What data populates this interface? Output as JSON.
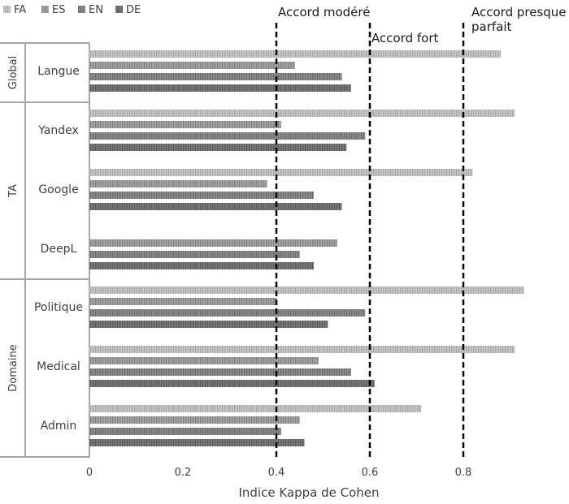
{
  "chart_data": {
    "type": "bar",
    "orientation": "horizontal",
    "xlabel": "Indice Kappa de Cohen",
    "xlim": [
      0,
      1
    ],
    "x_ticks": [
      "0",
      "0.2",
      "0.4",
      "0.6",
      "0.8"
    ],
    "x_tick_values": [
      0,
      0.2,
      0.4,
      0.6,
      0.8
    ],
    "legend_position": "top-left",
    "grid": false,
    "series": [
      {
        "name": "FA",
        "color": "#c8c8c8",
        "hatch": "#a6a6a6"
      },
      {
        "name": "ES",
        "color": "#a6a6a6",
        "hatch": "#7f7f7f"
      },
      {
        "name": "EN",
        "color": "#8c8c8c",
        "hatch": "#6b6b6b"
      },
      {
        "name": "DE",
        "color": "#7a7a7a",
        "hatch": "#595959"
      }
    ],
    "groups": [
      {
        "name": "Global",
        "categories": [
          {
            "name": "Langue",
            "values": [
              0.88,
              0.44,
              0.54,
              0.56
            ]
          }
        ]
      },
      {
        "name": "TA",
        "categories": [
          {
            "name": "Yandex",
            "values": [
              0.91,
              0.41,
              0.59,
              0.55
            ]
          },
          {
            "name": "Google",
            "values": [
              0.82,
              0.38,
              0.48,
              0.54
            ]
          },
          {
            "name": "DeepL",
            "values": [
              null,
              0.53,
              0.45,
              0.48
            ]
          }
        ]
      },
      {
        "name": "Domaine",
        "categories": [
          {
            "name": "Politique",
            "values": [
              0.93,
              0.4,
              0.59,
              0.51
            ]
          },
          {
            "name": "Medical",
            "values": [
              0.91,
              0.49,
              0.56,
              0.61
            ]
          },
          {
            "name": "Admin",
            "values": [
              0.71,
              0.45,
              0.41,
              0.46
            ]
          }
        ]
      }
    ],
    "reference_lines": [
      {
        "x": 0.4,
        "label": "Accord modéré"
      },
      {
        "x": 0.6,
        "label": "Accord fort"
      },
      {
        "x": 0.8,
        "label": "Accord presque parfait",
        "label_lines": [
          "Accord presque",
          "parfait"
        ]
      }
    ]
  }
}
